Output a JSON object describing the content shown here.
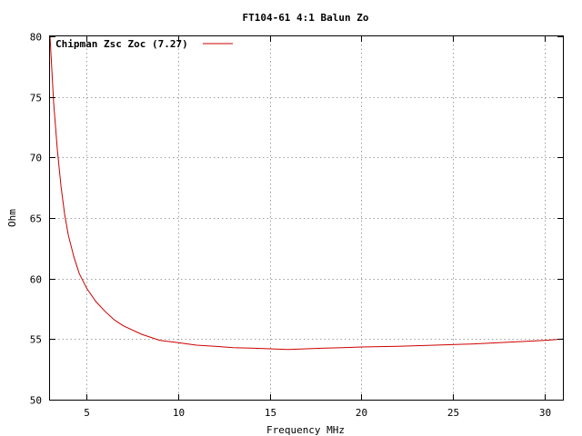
{
  "chart_data": {
    "type": "line",
    "title": "FT104-61 4:1 Balun Zo",
    "xlabel": "Frequency MHz",
    "ylabel": "Ohm",
    "xlim": [
      3,
      31
    ],
    "ylim": [
      50,
      80
    ],
    "xticks": [
      5,
      10,
      15,
      20,
      25,
      30
    ],
    "yticks": [
      50,
      55,
      60,
      65,
      70,
      75,
      80
    ],
    "grid": true,
    "legend_position": "top-left",
    "series": [
      {
        "name": "Chipman Zsc Zoc (7.27)",
        "color": "#cc0000",
        "x": [
          3.0,
          3.2,
          3.4,
          3.6,
          3.8,
          4.0,
          4.3,
          4.6,
          5.0,
          5.5,
          6.0,
          6.5,
          7.0,
          8.0,
          9.0,
          10.0,
          11.0,
          12.0,
          13.0,
          14.0,
          15.0,
          16.0,
          17.0,
          18.0,
          19.0,
          20.0,
          22.0,
          24.0,
          26.0,
          28.0,
          30.0,
          31.0
        ],
        "y": [
          80.0,
          74.5,
          70.6,
          67.6,
          65.3,
          63.6,
          61.8,
          60.4,
          59.2,
          58.1,
          57.3,
          56.6,
          56.1,
          55.4,
          54.9,
          54.7,
          54.5,
          54.4,
          54.3,
          54.25,
          54.2,
          54.15,
          54.2,
          54.25,
          54.3,
          54.35,
          54.4,
          54.5,
          54.6,
          54.75,
          54.9,
          55.0
        ]
      }
    ]
  }
}
